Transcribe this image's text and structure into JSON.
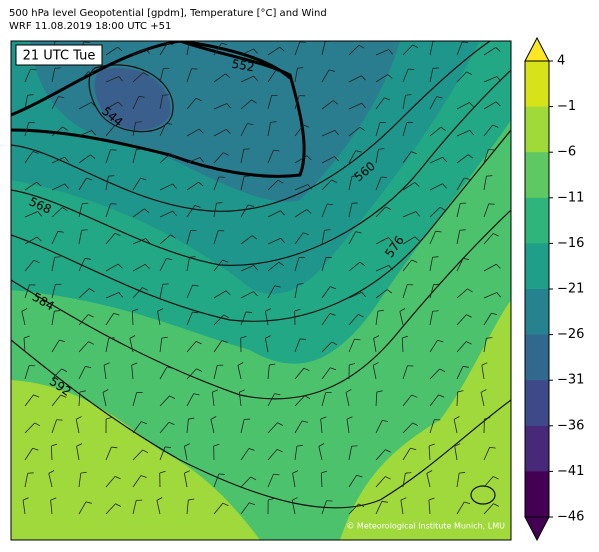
{
  "header": {
    "title": "500 hPa level Geopotential [gpdm], Temperature [°C] and Wind",
    "subtitle": "WRF 11.08.2019 18:00 UTC +51"
  },
  "map": {
    "time_label": "21 UTC Tue",
    "contour_labels": [
      "544",
      "552",
      "560",
      "568",
      "576",
      "584",
      "592"
    ],
    "credit": "© Meteorological Institute Munich, LMU"
  },
  "colorbar": {
    "ticks": [
      4,
      {
        "value": -1,
        "label": "−1"
      },
      {
        "value": -6,
        "label": "−6"
      },
      {
        "value": -11,
        "label": "−11"
      },
      {
        "value": -16,
        "label": "−16"
      },
      {
        "value": -21,
        "label": "−21"
      },
      {
        "value": -26,
        "label": "−26"
      },
      {
        "value": -31,
        "label": "−31"
      },
      {
        "value": -36,
        "label": "−36"
      },
      {
        "value": -41,
        "label": "−41"
      },
      {
        "value": -46,
        "label": "−46"
      }
    ],
    "colors": [
      "#d8e219",
      "#a0da39",
      "#5ec962",
      "#2fb47c",
      "#1f9e89",
      "#26828e",
      "#31688e",
      "#3e4989",
      "#482878",
      "#440154"
    ],
    "over_color": "#fde725",
    "under_color": "#440154"
  }
}
